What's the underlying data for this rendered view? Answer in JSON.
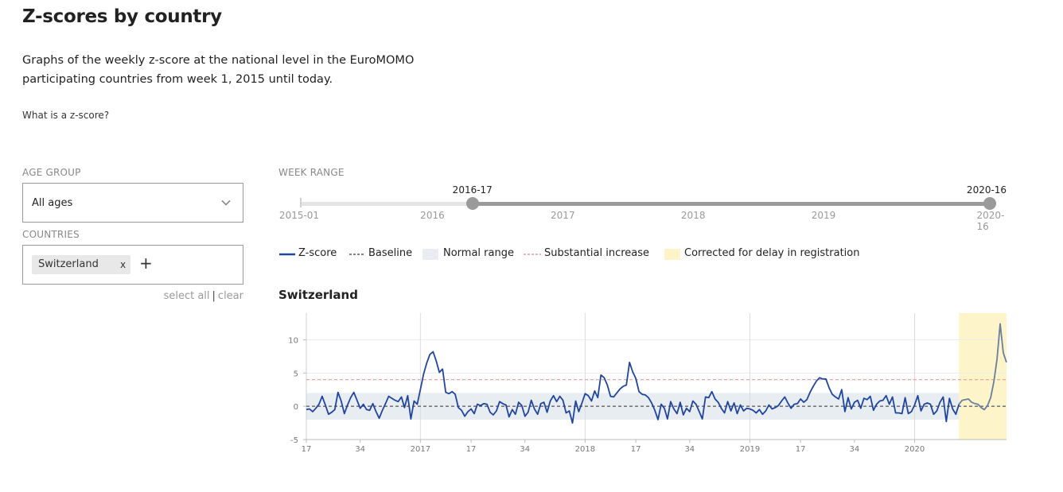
{
  "page": {
    "title": "Z-scores by country",
    "intro": "Graphs of the weekly z-score at the national level in the EuroMOMO participating countries from week 1, 2015 until today.",
    "zscore_link": "What is a z-score?"
  },
  "filters": {
    "age_group_label": "AGE GROUP",
    "age_group_value": "All ages",
    "countries_label": "COUNTRIES",
    "selected_country": "Switzerland",
    "remove_chip": "x",
    "add": "+",
    "select_all": "select all",
    "separator": "|",
    "clear": "clear"
  },
  "week_range": {
    "label": "WEEK RANGE",
    "start_label": "2016-17",
    "end_label": "2020-16",
    "start_fraction": 0.25,
    "end_fraction": 1.0,
    "min_label": "2015-01",
    "max_label": "2020-16",
    "year_labels": [
      "2016",
      "2017",
      "2018",
      "2019"
    ],
    "year_fractions": [
      0.192,
      0.381,
      0.57,
      0.759
    ]
  },
  "legend": {
    "zscore": "Z-score",
    "baseline": "Baseline",
    "normal_range": "Normal range",
    "substantial_increase": "Substantial increase",
    "corrected": "Corrected for delay in registration"
  },
  "colors": {
    "zscore_line": "#1f45a0",
    "baseline": "#555555",
    "normal_range": "#e8edf2",
    "substantial": "#e79a9a",
    "corrected": "#fdf5c9",
    "slider_fill": "#9a9a9a"
  },
  "chart_data": {
    "type": "line",
    "title": "Switzerland",
    "x_start": "2016-17",
    "x_tick_labels": [
      "17",
      "34",
      "2017",
      "17",
      "34",
      "2018",
      "17",
      "34",
      "2019",
      "17",
      "34",
      "2020"
    ],
    "x_tick_weeks": [
      0,
      17,
      36,
      52,
      69,
      88,
      104,
      121,
      140,
      156,
      173,
      192
    ],
    "year_gridline_weeks": [
      36,
      88,
      140,
      192
    ],
    "y_ticks": [
      10,
      5,
      0,
      -5
    ],
    "ylim": [
      -5,
      14
    ],
    "baseline": 0,
    "normal_range": [
      -2,
      2
    ],
    "substantial_increase": 4,
    "corrected_from_week": 206,
    "series": [
      {
        "values": [
          -0.5,
          -0.4,
          -0.8,
          -0.3,
          0.3,
          1.5,
          0.2,
          -1.2,
          -0.9,
          -0.5,
          2.1,
          0.8,
          -1.1,
          0.2,
          1.3,
          2.1,
          0.9,
          -0.3,
          0.3,
          -0.5,
          -0.6,
          0.4,
          -0.8,
          -1.8,
          -0.6,
          0.4,
          1.5,
          1.2,
          0.9,
          0.7,
          1.4,
          -0.2,
          1.6,
          -1.9,
          0.8,
          0.3,
          2.5,
          4.8,
          6.5,
          7.8,
          8.2,
          6.8,
          5.1,
          5.6,
          2.1,
          1.9,
          2.2,
          1.8,
          -0.2,
          -0.6,
          -1.5,
          -0.8,
          -0.4,
          -1.1,
          0.3,
          0.1,
          0.4,
          0.3,
          -0.9,
          -1.3,
          -0.7,
          0.7,
          0.4,
          0.2,
          -1.6,
          -0.5,
          -1.2,
          0.6,
          0.1,
          -1.5,
          -0.9,
          0.9,
          -0.4,
          -1.2,
          0.4,
          0.6,
          -0.9,
          0.8,
          1.6,
          0.7,
          1.5,
          0.9,
          -1.0,
          -0.7,
          -2.5,
          0.8,
          -0.8,
          0.5,
          1.9,
          1.6,
          0.8,
          2.3,
          1.3,
          4.7,
          4.3,
          3.2,
          1.5,
          1.4,
          2.0,
          2.6,
          3.0,
          3.2,
          6.6,
          5.2,
          4.2,
          2.2,
          1.8,
          1.7,
          1.3,
          0.5,
          -0.6,
          -2.0,
          0.3,
          -0.3,
          -1.9,
          0.7,
          -0.4,
          -1.1,
          0.6,
          -1.3,
          -0.3,
          -0.8,
          0.8,
          0.3,
          -0.8,
          -1.9,
          1.4,
          1.3,
          2.2,
          1.1,
          0.6,
          -0.3,
          -1.0,
          0.7,
          -0.7,
          0.5,
          -1.1,
          0.2,
          -0.7,
          -0.3,
          -0.4,
          -0.6,
          -1.0,
          -0.5,
          -1.2,
          -0.7,
          0.2,
          -0.4,
          -0.2,
          0.1,
          0.8,
          1.4,
          0.5,
          -0.3,
          0.3,
          0.4,
          1.1,
          0.6,
          1.0,
          2.1,
          3.0,
          3.8,
          4.3,
          4.1,
          4.1,
          2.8,
          1.8,
          1.4,
          1.1,
          2.5,
          -0.8,
          1.3,
          -0.4,
          0.6,
          0.9,
          -0.3,
          1.2,
          1.0,
          1.5,
          -0.6,
          0.3,
          0.8,
          0.9,
          1.6,
          0.3,
          1.4,
          -1.0,
          -1.0,
          -1.1,
          1.3,
          -1.1,
          -0.8,
          0.2,
          1.6,
          -0.7,
          0.3,
          0.5,
          0.3,
          -1.2,
          -0.7,
          0.6,
          1.4,
          -2.3,
          1.2,
          -0.4,
          -1.2,
          0.3,
          0.9,
          1.0,
          1.1,
          0.6,
          0.4,
          0.3,
          -0.2,
          -0.5,
          0.1,
          1.3,
          3.7,
          7.1,
          12.4,
          8.0,
          6.6
        ]
      }
    ]
  }
}
